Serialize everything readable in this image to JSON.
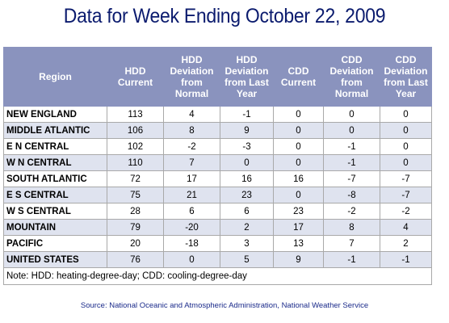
{
  "title": "Data for Week Ending October 22, 2009",
  "table": {
    "headers": [
      "Region",
      "HDD\nCurrent",
      "HDD\nDeviation\nfrom\nNormal",
      "HDD\nDeviation\nfrom Last\nYear",
      "CDD\nCurrent",
      "CDD\nDeviation\nfrom\nNormal",
      "CDD\nDeviation\nfrom Last\nYear"
    ],
    "rows": [
      [
        "NEW ENGLAND",
        "113",
        "4",
        "-1",
        "0",
        "0",
        "0"
      ],
      [
        "MIDDLE ATLANTIC",
        "106",
        "8",
        "9",
        "0",
        "0",
        "0"
      ],
      [
        "E N CENTRAL",
        "102",
        "-2",
        "-3",
        "0",
        "-1",
        "0"
      ],
      [
        "W N CENTRAL",
        "110",
        "7",
        "0",
        "0",
        "-1",
        "0"
      ],
      [
        "SOUTH ATLANTIC",
        "72",
        "17",
        "16",
        "16",
        "-7",
        "-7"
      ],
      [
        "E S CENTRAL",
        "75",
        "21",
        "23",
        "0",
        "-8",
        "-7"
      ],
      [
        "W S CENTRAL",
        "28",
        "6",
        "6",
        "23",
        "-2",
        "-2"
      ],
      [
        "MOUNTAIN",
        "79",
        "-20",
        "2",
        "17",
        "8",
        "4"
      ],
      [
        "PACIFIC",
        "20",
        "-18",
        "3",
        "13",
        "7",
        "2"
      ],
      [
        "UNITED STATES",
        "76",
        "0",
        "5",
        "9",
        "-1",
        "-1"
      ]
    ],
    "note": "Note: HDD: heating-degree-day; CDD: cooling-degree-day"
  },
  "source": "Source:  National Oceanic and Atmospheric Administration, National Weather Service",
  "colors": {
    "title": "#0b1b6e",
    "header_bg": "#8a93be",
    "row_shade": "#dfe3ef",
    "source_text": "#1a2a8a"
  }
}
